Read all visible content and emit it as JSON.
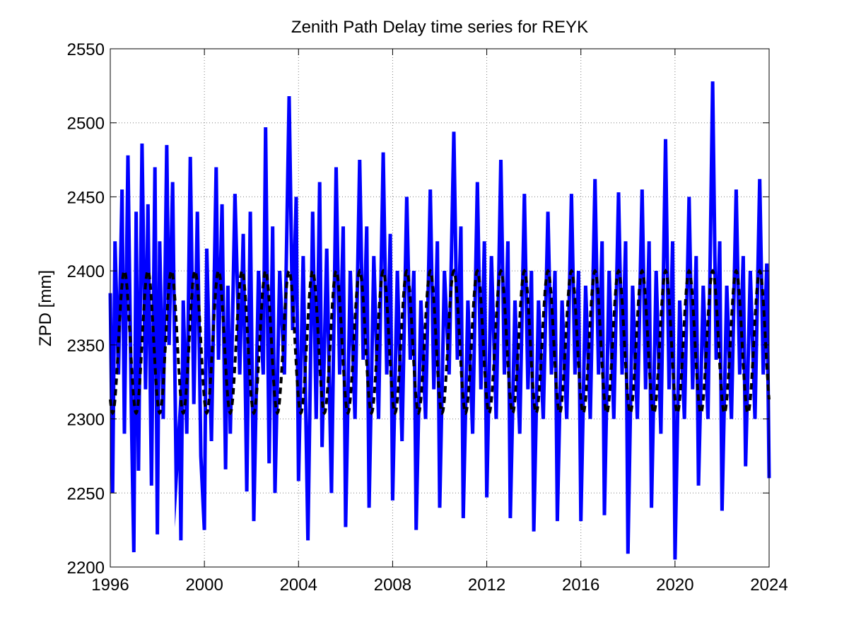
{
  "chart_data": {
    "type": "line",
    "title": "Zenith Path Delay time series for REYK",
    "xlabel": "",
    "ylabel": "ZPD [mm]",
    "xlim": [
      1996,
      2024
    ],
    "ylim": [
      2200,
      2550
    ],
    "xticks": [
      1996,
      2000,
      2004,
      2008,
      2012,
      2016,
      2020,
      2024
    ],
    "yticks": [
      2200,
      2250,
      2300,
      2350,
      2400,
      2450,
      2500,
      2550
    ],
    "grid": true,
    "series": [
      {
        "style": "solid",
        "color": "#0000ff",
        "x": [
          1996.0,
          1996.1,
          1996.2,
          1996.35,
          1996.5,
          1996.6,
          1996.75,
          1996.9,
          1997.0,
          1997.1,
          1997.2,
          1997.35,
          1997.5,
          1997.6,
          1997.75,
          1997.9,
          1998.0,
          1998.1,
          1998.25,
          1998.4,
          1998.5,
          1998.65,
          1998.8,
          1998.95,
          1999.0,
          1999.1,
          1999.25,
          1999.4,
          1999.55,
          1999.7,
          1999.85,
          2000.0,
          2000.1,
          2000.3,
          2000.5,
          2000.6,
          2000.75,
          2000.9,
          2001.0,
          2001.1,
          2001.3,
          2001.5,
          2001.65,
          2001.8,
          2001.95,
          2002.1,
          2002.3,
          2002.5,
          2002.6,
          2002.75,
          2002.9,
          2003.0,
          2003.2,
          2003.4,
          2003.6,
          2003.75,
          2003.9,
          2004.0,
          2004.2,
          2004.4,
          2004.6,
          2004.75,
          2004.9,
          2005.0,
          2005.2,
          2005.4,
          2005.6,
          2005.75,
          2005.9,
          2006.0,
          2006.2,
          2006.4,
          2006.6,
          2006.75,
          2006.9,
          2007.0,
          2007.2,
          2007.4,
          2007.6,
          2007.75,
          2007.9,
          2008.0,
          2008.2,
          2008.4,
          2008.6,
          2008.75,
          2008.9,
          2009.0,
          2009.2,
          2009.4,
          2009.6,
          2009.75,
          2009.9,
          2010.0,
          2010.2,
          2010.4,
          2010.6,
          2010.75,
          2010.9,
          2011.0,
          2011.2,
          2011.4,
          2011.6,
          2011.75,
          2011.9,
          2012.0,
          2012.2,
          2012.4,
          2012.6,
          2012.75,
          2012.9,
          2013.0,
          2013.2,
          2013.4,
          2013.6,
          2013.75,
          2013.9,
          2014.0,
          2014.2,
          2014.4,
          2014.6,
          2014.75,
          2014.9,
          2015.0,
          2015.2,
          2015.4,
          2015.6,
          2015.75,
          2015.9,
          2016.0,
          2016.2,
          2016.4,
          2016.6,
          2016.75,
          2016.9,
          2017.0,
          2017.2,
          2017.4,
          2017.6,
          2017.75,
          2017.9,
          2018.0,
          2018.2,
          2018.4,
          2018.6,
          2018.75,
          2018.9,
          2019.0,
          2019.2,
          2019.4,
          2019.6,
          2019.75,
          2019.9,
          2020.0,
          2020.2,
          2020.4,
          2020.6,
          2020.75,
          2020.9,
          2021.0,
          2021.2,
          2021.4,
          2021.6,
          2021.75,
          2021.9,
          2022.0,
          2022.2,
          2022.4,
          2022.6,
          2022.75,
          2022.9,
          2023.0,
          2023.2,
          2023.4,
          2023.6,
          2023.75,
          2023.9,
          2024.0
        ],
        "y": [
          2385,
          2250,
          2420,
          2330,
          2455,
          2290,
          2478,
          2300,
          2210,
          2440,
          2265,
          2486,
          2320,
          2445,
          2255,
          2470,
          2222,
          2420,
          2300,
          2485,
          2350,
          2460,
          2260,
          2300,
          2218,
          2380,
          2290,
          2477,
          2310,
          2440,
          2275,
          2225,
          2415,
          2285,
          2470,
          2340,
          2445,
          2266,
          2390,
          2290,
          2452,
          2330,
          2425,
          2251,
          2440,
          2231,
          2400,
          2330,
          2497,
          2270,
          2430,
          2250,
          2400,
          2330,
          2518,
          2360,
          2450,
          2258,
          2410,
          2218,
          2440,
          2300,
          2460,
          2281,
          2415,
          2250,
          2470,
          2330,
          2430,
          2227,
          2400,
          2300,
          2475,
          2340,
          2430,
          2240,
          2410,
          2300,
          2480,
          2330,
          2425,
          2245,
          2400,
          2285,
          2450,
          2340,
          2400,
          2225,
          2380,
          2300,
          2455,
          2320,
          2420,
          2240,
          2400,
          2330,
          2494,
          2340,
          2430,
          2233,
          2380,
          2290,
          2460,
          2320,
          2420,
          2247,
          2410,
          2300,
          2475,
          2330,
          2420,
          2233,
          2380,
          2290,
          2452,
          2320,
          2400,
          2224,
          2380,
          2300,
          2440,
          2330,
          2400,
          2231,
          2380,
          2300,
          2452,
          2330,
          2400,
          2231,
          2390,
          2300,
          2462,
          2330,
          2420,
          2235,
          2400,
          2300,
          2453,
          2330,
          2420,
          2209,
          2390,
          2300,
          2455,
          2320,
          2420,
          2240,
          2400,
          2290,
          2489,
          2320,
          2420,
          2205,
          2380,
          2300,
          2450,
          2320,
          2410,
          2255,
          2390,
          2300,
          2528,
          2340,
          2420,
          2238,
          2390,
          2300,
          2455,
          2330,
          2410,
          2268,
          2400,
          2300,
          2462,
          2330,
          2405,
          2260
        ]
      },
      {
        "style": "dashed",
        "color": "#000000",
        "model": "seasonal sinusoid",
        "mean": 2352,
        "amplitude": 48,
        "period_years": 1,
        "peak_phase_year_fraction": 0.6,
        "x_range": [
          1996,
          2024
        ]
      }
    ]
  }
}
